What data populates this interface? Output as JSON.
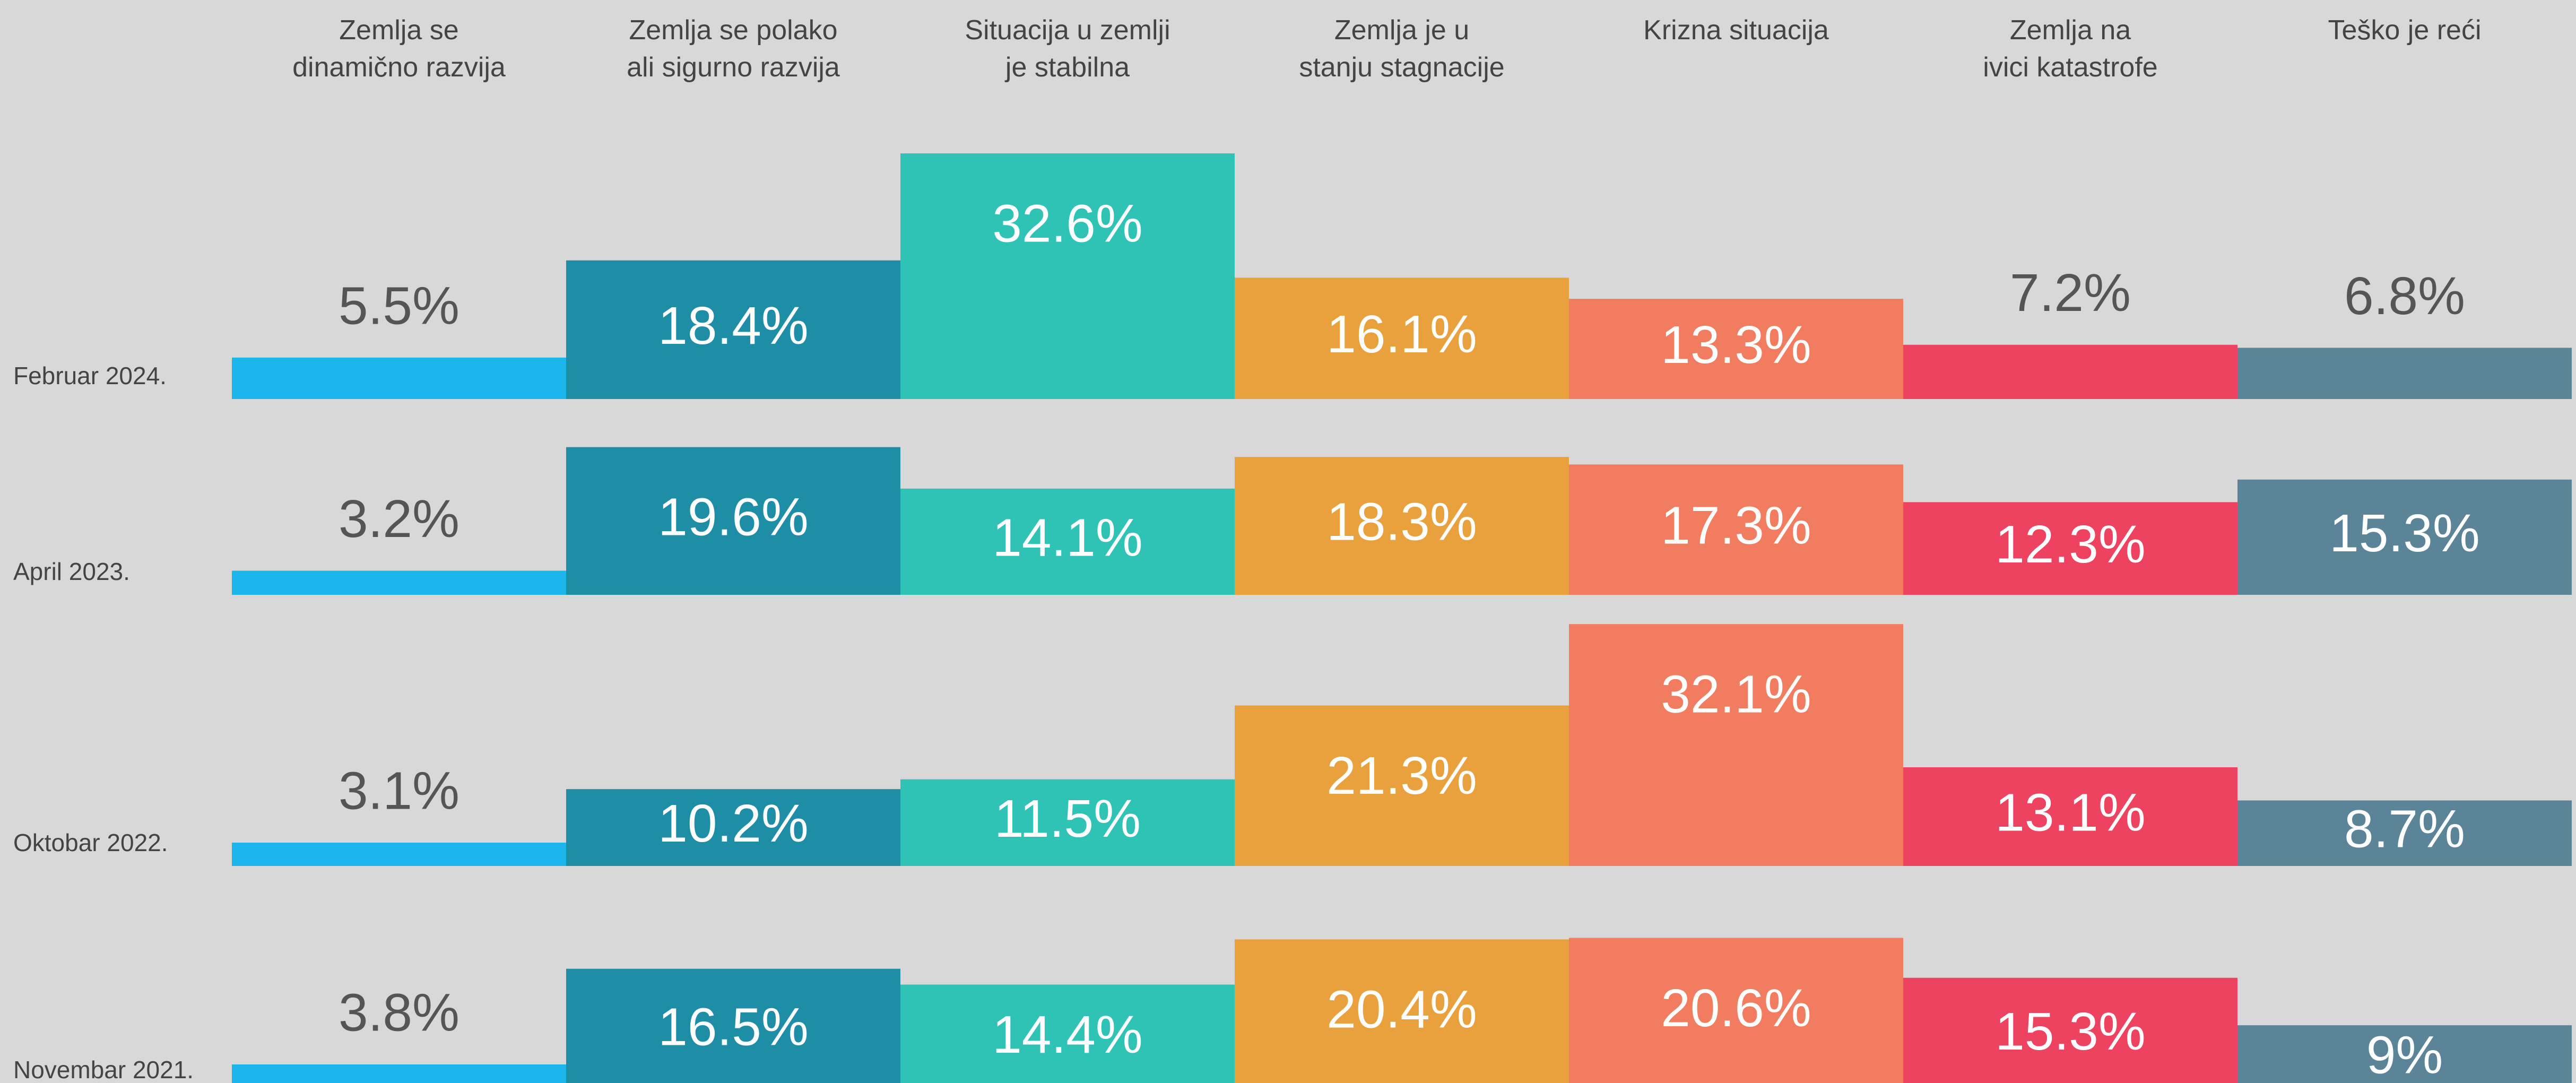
{
  "chart_data": {
    "type": "bar",
    "categories": [
      "Zemlja se\ndinamično razvija",
      "Zemlja se polako\nali sigurno razvija",
      "Situacija u zemlji\nje stabilna",
      "Zemlja je u\nstanju stagnacije",
      "Krizna situacija",
      "Zemlja na\nivici katastrofe",
      "Teško je reći"
    ],
    "colors": [
      "#1cb5ec",
      "#1e8ea6",
      "#2fc3b5",
      "#e8a13c",
      "#f27c5f",
      "#ee4261",
      "#5c8498"
    ],
    "series": [
      {
        "name": "Februar 2024.",
        "values": [
          5.5,
          18.4,
          32.6,
          16.1,
          13.3,
          7.2,
          6.8
        ],
        "value_labels": [
          "5.5%",
          "18.4%",
          "32.6%",
          "16.1%",
          "13.3%",
          "7.2%",
          "6.8%"
        ]
      },
      {
        "name": "April 2023.",
        "values": [
          3.2,
          19.6,
          14.1,
          18.3,
          17.3,
          12.3,
          15.3
        ],
        "value_labels": [
          "3.2%",
          "19.6%",
          "14.1%",
          "18.3%",
          "17.3%",
          "12.3%",
          "15.3%"
        ]
      },
      {
        "name": "Oktobar 2022.",
        "values": [
          3.1,
          10.2,
          11.5,
          21.3,
          32.1,
          13.1,
          8.7
        ],
        "value_labels": [
          "3.1%",
          "10.2%",
          "11.5%",
          "21.3%",
          "32.1%",
          "13.1%",
          "8.7%"
        ]
      },
      {
        "name": "Novembar 2021.",
        "values": [
          3.8,
          16.5,
          14.4,
          20.4,
          20.6,
          15.3,
          9
        ],
        "value_labels": [
          "3.8%",
          "16.5%",
          "14.4%",
          "20.4%",
          "20.6%",
          "15.3%",
          "9%"
        ]
      }
    ]
  }
}
